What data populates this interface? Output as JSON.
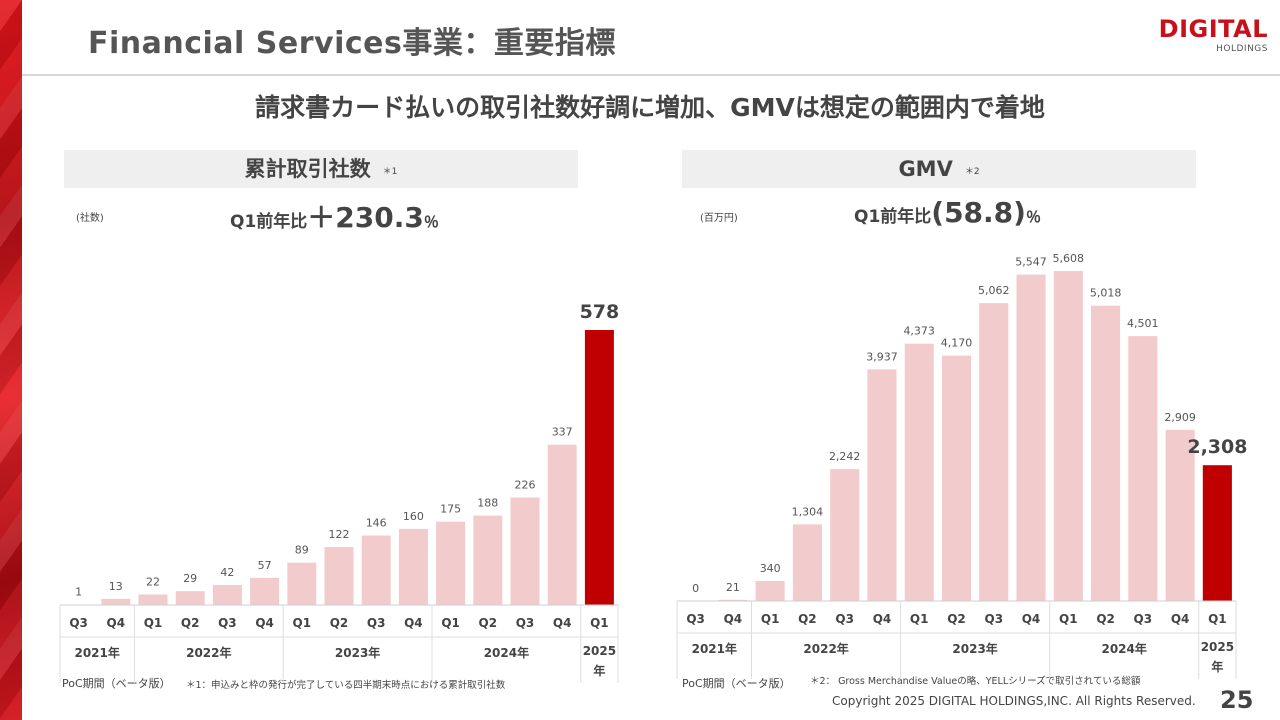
{
  "header": {
    "title": "Financial Services事業：重要指標",
    "logo_main": "DIGITAL",
    "logo_sub": "HOLDINGS"
  },
  "headline": "請求書カード払いの取引社数好調に増加、GMVは想定の範囲内で着地",
  "colors": {
    "bar_light": "#f2cccd",
    "bar_highlight": "#c00000",
    "accent": "#c8101d"
  },
  "left_panel": {
    "title": "累計取引社数",
    "note_mark": "＊1",
    "unit": "(社数)",
    "yoy_label": "Q1前年比",
    "yoy_value": "＋230.3",
    "yoy_suffix": "％",
    "poc_label": "PoC期間（ベータ版）",
    "footnote": "＊1：申込みと枠の発行が完了している四半期末時点における累計取引社数"
  },
  "right_panel": {
    "title": "GMV",
    "note_mark": "＊2",
    "unit": "(百万円)",
    "yoy_label": "Q1前年比",
    "yoy_value": "(58.8)",
    "yoy_suffix": "％",
    "poc_label": "PoC期間（ベータ版）",
    "footnote": "＊2： Gross Merchandise Valueの略、YELLシリーズで取引されている総額"
  },
  "chart_data": [
    {
      "type": "bar",
      "title": "累計取引社数",
      "categories": [
        "Q3",
        "Q4",
        "Q1",
        "Q2",
        "Q3",
        "Q4",
        "Q1",
        "Q2",
        "Q3",
        "Q4",
        "Q1",
        "Q2",
        "Q3",
        "Q4",
        "Q1"
      ],
      "years": [
        {
          "label": "2021年",
          "span": 2
        },
        {
          "label": "2022年",
          "span": 4
        },
        {
          "label": "2023年",
          "span": 4
        },
        {
          "label": "2024年",
          "span": 4
        },
        {
          "label": "2025年",
          "span": 1
        }
      ],
      "values": [
        1,
        13,
        22,
        29,
        42,
        57,
        89,
        122,
        146,
        160,
        175,
        188,
        226,
        337,
        578
      ],
      "labels": [
        "1",
        "13",
        "22",
        "29",
        "42",
        "57",
        "89",
        "122",
        "146",
        "160",
        "175",
        "188",
        "226",
        "337",
        "578"
      ],
      "highlight_index": 14
    },
    {
      "type": "bar",
      "title": "GMV",
      "categories": [
        "Q3",
        "Q4",
        "Q1",
        "Q2",
        "Q3",
        "Q4",
        "Q1",
        "Q2",
        "Q3",
        "Q4",
        "Q1",
        "Q2",
        "Q3",
        "Q4",
        "Q1"
      ],
      "years": [
        {
          "label": "2021年",
          "span": 2
        },
        {
          "label": "2022年",
          "span": 4
        },
        {
          "label": "2023年",
          "span": 4
        },
        {
          "label": "2024年",
          "span": 4
        },
        {
          "label": "2025年",
          "span": 1
        }
      ],
      "values": [
        0,
        21,
        340,
        1304,
        2242,
        3937,
        4373,
        4170,
        5062,
        5547,
        5608,
        5018,
        4501,
        2909,
        2308
      ],
      "labels": [
        "0",
        "21",
        "340",
        "1,304",
        "2,242",
        "3,937",
        "4,373",
        "4,170",
        "5,062",
        "5,547",
        "5,608",
        "5,018",
        "4,501",
        "2,909",
        "2,308"
      ],
      "highlight_index": 14
    }
  ],
  "footer": {
    "copyright": "Copyright 2025 DIGITAL HOLDINGS,INC. All Rights Reserved.",
    "page_number": "25"
  }
}
